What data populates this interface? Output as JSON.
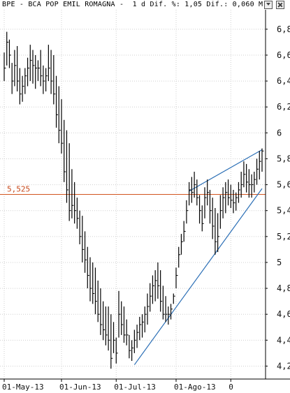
{
  "header": {
    "title": "BPE - BCA POP EMIL ROMAGNA -  1 d Dif. %: 1,05 Dif.: 0,060 M:"
  },
  "chart_data": {
    "type": "bar",
    "subtype": "ohlc",
    "title": "BPE - BCA POP EMIL ROMAGNA -  1 d Dif. %: 1,05 Dif.: 0,060 M:",
    "ylim": [
      4.1,
      6.95
    ],
    "yticks": [
      4.2,
      4.4,
      4.6,
      4.8,
      5.0,
      5.2,
      5.4,
      5.6,
      5.8,
      6.0,
      6.2,
      6.4,
      6.6,
      6.8
    ],
    "ytick_labels": [
      "4,2",
      "4,4",
      "4,6",
      "4,8",
      "5",
      "5,2",
      "5,4",
      "5,6",
      "5,8",
      "6",
      "6,2",
      "6,4",
      "6,6",
      "6,8"
    ],
    "x_labels": [
      {
        "label": "01-May-13",
        "index": 0
      },
      {
        "label": "01-Jun-13",
        "index": 22
      },
      {
        "label": "01-Jul-13",
        "index": 43
      },
      {
        "label": "01-Ago-13",
        "index": 66
      },
      {
        "label": "0",
        "index": 87
      }
    ],
    "grid": true,
    "horizontal_line": {
      "value": 5.525,
      "label": "5,525",
      "color": "#d2541f"
    },
    "trendlines": [
      {
        "from": {
          "index": 50,
          "value": 4.21
        },
        "to": {
          "index": 99,
          "value": 5.57
        },
        "color": "#2b6fb6"
      },
      {
        "from": {
          "index": 71,
          "value": 5.55
        },
        "to": {
          "index": 99,
          "value": 5.87
        },
        "color": "#2b6fb6"
      }
    ],
    "series": [
      {
        "high": [
          6.62,
          6.78,
          6.72,
          6.54,
          6.64,
          6.67,
          6.5,
          6.44,
          6.5,
          6.58,
          6.68,
          6.64,
          6.6,
          6.56,
          6.64,
          6.52,
          6.5,
          6.68,
          6.64,
          6.6,
          6.44,
          6.36,
          6.26,
          6.1,
          6.02,
          5.92,
          5.72,
          5.62,
          5.5,
          5.4,
          5.36,
          5.24,
          5.12,
          5.04,
          5.0,
          4.96,
          4.86,
          4.8,
          4.7,
          4.66,
          4.66,
          4.6,
          4.54,
          4.42,
          4.78,
          4.7,
          4.66,
          4.56,
          4.44,
          4.4,
          4.48,
          4.52,
          4.58,
          4.6,
          4.66,
          4.76,
          4.84,
          4.9,
          4.94,
          5.0,
          4.94,
          4.82,
          4.74,
          4.66,
          4.68,
          4.76,
          4.96,
          5.12,
          5.22,
          5.32,
          5.48,
          5.62,
          5.66,
          5.7,
          5.64,
          5.52,
          5.44,
          5.58,
          5.64,
          5.56,
          5.5,
          5.42,
          5.38,
          5.52,
          5.58,
          5.62,
          5.64,
          5.6,
          5.56,
          5.54,
          5.62,
          5.7,
          5.78,
          5.76,
          5.72,
          5.68,
          5.7,
          5.8,
          5.86,
          5.88
        ],
        "low": [
          6.4,
          6.52,
          6.5,
          6.3,
          6.36,
          6.32,
          6.22,
          6.24,
          6.3,
          6.36,
          6.4,
          6.38,
          6.34,
          6.4,
          6.36,
          6.3,
          6.32,
          6.4,
          6.3,
          6.22,
          6.04,
          5.92,
          5.84,
          5.62,
          5.46,
          5.32,
          5.34,
          5.3,
          5.26,
          5.14,
          5.0,
          4.92,
          4.8,
          4.7,
          4.68,
          4.6,
          4.54,
          4.44,
          4.4,
          4.36,
          4.32,
          4.18,
          4.3,
          4.22,
          4.42,
          4.44,
          4.38,
          4.36,
          4.26,
          4.24,
          4.3,
          4.34,
          4.4,
          4.42,
          4.46,
          4.52,
          4.62,
          4.68,
          4.7,
          4.72,
          4.62,
          4.56,
          4.54,
          4.52,
          4.56,
          4.68,
          4.8,
          4.96,
          5.06,
          5.16,
          5.3,
          5.44,
          5.46,
          5.5,
          5.44,
          5.3,
          5.24,
          5.34,
          5.44,
          5.3,
          5.18,
          5.06,
          5.08,
          5.26,
          5.34,
          5.38,
          5.44,
          5.42,
          5.38,
          5.4,
          5.46,
          5.5,
          5.58,
          5.54,
          5.5,
          5.5,
          5.54,
          5.6,
          5.64,
          5.7
        ],
        "close": [
          6.5,
          6.7,
          6.6,
          6.4,
          6.52,
          6.4,
          6.3,
          6.36,
          6.44,
          6.5,
          6.56,
          6.52,
          6.5,
          6.5,
          6.44,
          6.4,
          6.44,
          6.5,
          6.4,
          6.3,
          6.14,
          6.02,
          5.92,
          5.7,
          5.56,
          5.4,
          5.44,
          5.4,
          5.34,
          5.2,
          5.1,
          5.02,
          4.9,
          4.8,
          4.76,
          4.7,
          4.6,
          4.52,
          4.48,
          4.44,
          4.4,
          4.26,
          4.4,
          4.3,
          4.6,
          4.52,
          4.44,
          4.44,
          4.32,
          4.34,
          4.4,
          4.46,
          4.52,
          4.54,
          4.6,
          4.66,
          4.74,
          4.82,
          4.86,
          4.82,
          4.7,
          4.6,
          4.6,
          4.6,
          4.64,
          4.74,
          4.9,
          5.06,
          5.16,
          5.24,
          5.4,
          5.56,
          5.54,
          5.6,
          5.5,
          5.4,
          5.3,
          5.5,
          5.54,
          5.4,
          5.28,
          5.16,
          5.2,
          5.4,
          5.5,
          5.54,
          5.5,
          5.48,
          5.46,
          5.5,
          5.56,
          5.6,
          5.68,
          5.62,
          5.6,
          5.6,
          5.64,
          5.72,
          5.78,
          5.86
        ]
      }
    ]
  }
}
